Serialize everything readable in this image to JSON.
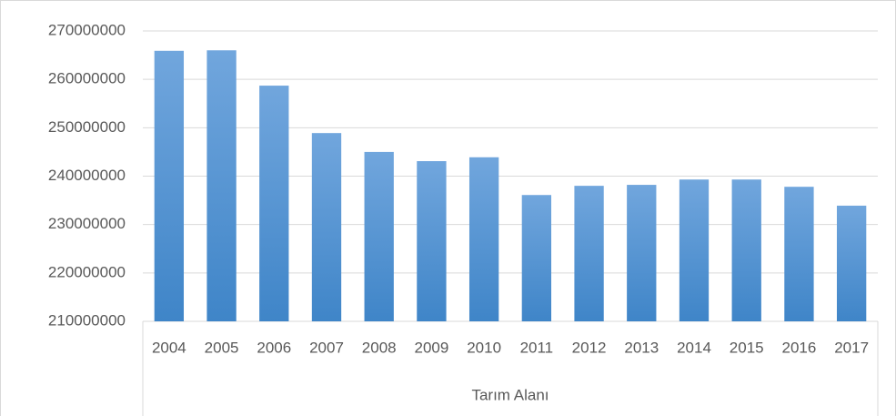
{
  "chart_data": {
    "type": "bar",
    "xlabel": "Tarım Alanı",
    "categories": [
      "2004",
      "2005",
      "2006",
      "2007",
      "2008",
      "2009",
      "2010",
      "2011",
      "2012",
      "2013",
      "2014",
      "2015",
      "2016",
      "2017"
    ],
    "values": [
      265900000,
      266000000,
      258700000,
      248900000,
      245000000,
      243100000,
      243900000,
      236100000,
      238000000,
      238200000,
      239300000,
      239300000,
      237800000,
      233900000
    ],
    "color": "#5b9bd5",
    "ylim": [
      210000000,
      270000000
    ],
    "yticks": [
      210000000,
      220000000,
      230000000,
      240000000,
      250000000,
      260000000,
      270000000
    ],
    "grid": true
  }
}
